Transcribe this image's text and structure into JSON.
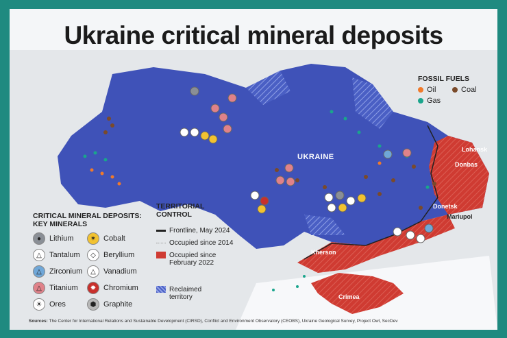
{
  "title": "Ukraine critical mineral deposits",
  "country_label": "UKRAINE",
  "fossil_fuels": {
    "title": "FOSSIL FUELS",
    "items": [
      {
        "label": "Oil",
        "color": "#f07a2a"
      },
      {
        "label": "Coal",
        "color": "#7a4a2a"
      },
      {
        "label": "Gas",
        "color": "#1aa58c"
      }
    ]
  },
  "minerals_legend": {
    "title_line1": "CRITICAL MINERAL DEPOSITS:",
    "title_line2": "KEY MINERALS",
    "items": [
      {
        "label": "Lithium",
        "color": "#8a8f96",
        "icon": "lithium-icon"
      },
      {
        "label": "Cobalt",
        "color": "#f2c230",
        "icon": "cobalt-icon"
      },
      {
        "label": "Tantalum",
        "color": "#ffffff",
        "icon": "tantalum-icon"
      },
      {
        "label": "Beryllium",
        "color": "#ffffff",
        "icon": "beryllium-icon"
      },
      {
        "label": "Zirconium",
        "color": "#6fa7d8",
        "icon": "zirconium-icon"
      },
      {
        "label": "Vanadium",
        "color": "#ffffff",
        "icon": "vanadium-icon"
      },
      {
        "label": "Titanium",
        "color": "#e0828a",
        "icon": "titanium-icon"
      },
      {
        "label": "Chromium",
        "color": "#c8302c",
        "icon": "chromium-icon"
      },
      {
        "label": "Ores",
        "color": "#ffffff",
        "icon": "ores-icon"
      },
      {
        "label": "Graphite",
        "color": "#b8b8b8",
        "icon": "graphite-icon"
      }
    ]
  },
  "territorial_control": {
    "title_line1": "TERRITORIAL",
    "title_line2": "CONTROL",
    "frontline": "Frontline, May 2024",
    "occupied_2014": "Occupied since 2014",
    "occupied_2022": "Occupied since February 2022",
    "reclaimed": "Reclaimed territory"
  },
  "place_labels": {
    "lohansk": "Lohansk",
    "donbas": "Donbas",
    "donetsk": "Donetsk",
    "mariupol": "Mariupol",
    "kherson": "Kherson",
    "crimea": "Crimea"
  },
  "sources": {
    "label": "Sources:",
    "text": "The Center for International Relations and Sustainable Development (CIRSD), Conflict and Environment Observatory (CEOBS), Ukraine Geological Survey, Project Owl, SecDev"
  },
  "colors": {
    "ukraine_blue": "#3f52b8",
    "occupied_red": "#cf3b32",
    "background_teal": "#1f8a80"
  }
}
